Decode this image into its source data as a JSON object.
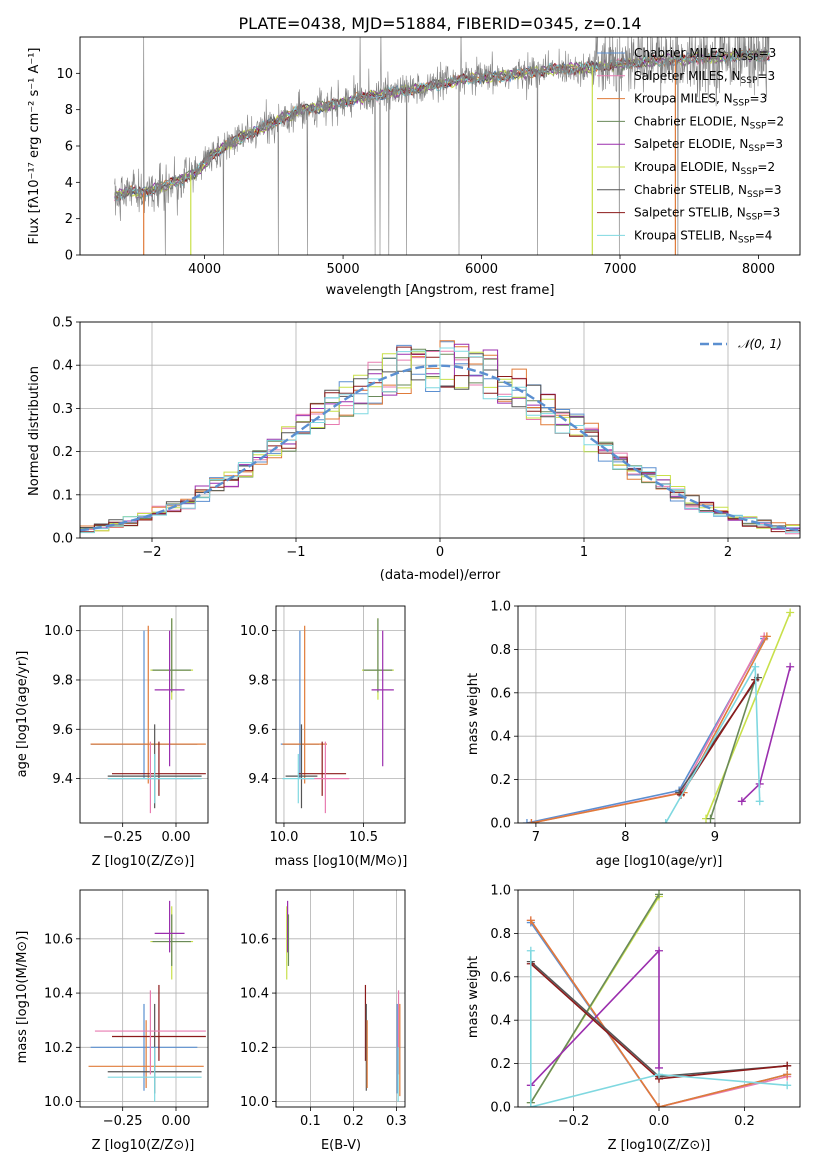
{
  "chart_data": [
    {
      "id": "spectrum",
      "type": "line",
      "title": "PLATE=0438, MJD=51884, FIBERID=0345, z=0.14",
      "xlabel": "wavelength [Angstrom, rest frame]",
      "ylabel": "Flux [fλ10⁻¹⁷ erg cm⁻² s⁻¹ A⁻¹]",
      "xlim": [
        3100,
        8300
      ],
      "ylim": [
        0,
        12
      ],
      "xticks": [
        4000,
        5000,
        6000,
        7000,
        8000
      ],
      "yticks": [
        0,
        2,
        4,
        6,
        8,
        10
      ],
      "grid": false,
      "legend_placement": "upper-right",
      "continuum": {
        "x": [
          3350,
          3450,
          3550,
          3650,
          3750,
          3850,
          3950,
          4050,
          4150,
          4300,
          4500,
          4700,
          4900,
          5100,
          5300,
          5500,
          5700,
          5900,
          6100,
          6300,
          6500,
          6700,
          6900,
          7100,
          7300,
          7500,
          7700,
          7900,
          8050
        ],
        "y": [
          3.2,
          3.5,
          3.4,
          3.7,
          3.9,
          4.2,
          4.6,
          5.5,
          6.0,
          6.6,
          7.3,
          8.0,
          8.2,
          8.6,
          8.9,
          9.1,
          9.4,
          9.7,
          9.8,
          10.0,
          10.2,
          10.3,
          10.4,
          10.6,
          10.7,
          10.8,
          10.9,
          11.0,
          11.0
        ]
      },
      "series": [
        {
          "name": "Chabrier MILES, N$_{SSP}$=3",
          "label_main": "Chabrier MILES, N",
          "label_sub": "SSP",
          "label_tail": "=3",
          "color": "#5b8fd0"
        },
        {
          "name": "Salpeter MILES, N$_{SSP}$=3",
          "label_main": "Salpeter MILES, N",
          "label_sub": "SSP",
          "label_tail": "=3",
          "color": "#e87bb0"
        },
        {
          "name": "Kroupa MILES, N$_{SSP}$=3",
          "label_main": "Kroupa MILES, N",
          "label_sub": "SSP",
          "label_tail": "=3",
          "color": "#e07b39"
        },
        {
          "name": "Chabrier ELODIE, N$_{SSP}$=2",
          "label_main": "Chabrier ELODIE, N",
          "label_sub": "SSP",
          "label_tail": "=2",
          "color": "#6a8a5a"
        },
        {
          "name": "Salpeter ELODIE, N$_{SSP}$=3",
          "label_main": "Salpeter ELODIE, N",
          "label_sub": "SSP",
          "label_tail": "=3",
          "color": "#9b2fae"
        },
        {
          "name": "Kroupa ELODIE, N$_{SSP}$=2",
          "label_main": "Kroupa ELODIE, N",
          "label_sub": "SSP",
          "label_tail": "=2",
          "color": "#c8e04a"
        },
        {
          "name": "Chabrier STELIB, N$_{SSP}$=3",
          "label_main": "Chabrier STELIB, N",
          "label_sub": "SSP",
          "label_tail": "=3",
          "color": "#555555"
        },
        {
          "name": "Salpeter STELIB, N$_{SSP}$=3",
          "label_main": "Salpeter STELIB, N",
          "label_sub": "SSP",
          "label_tail": "=3",
          "color": "#8b1a1a"
        },
        {
          "name": "Kroupa STELIB, N$_{SSP}$=4",
          "label_main": "Kroupa STELIB, N",
          "label_sub": "SSP",
          "label_tail": "=4",
          "color": "#7fd8e0"
        }
      ],
      "observed_color": "#808080"
    },
    {
      "id": "residuals",
      "type": "line",
      "xlabel": "(data-model)/error",
      "ylabel": "Normed distribution",
      "xlim": [
        -2.5,
        2.5
      ],
      "ylim": [
        0,
        0.5
      ],
      "xticks": [
        -2,
        -1,
        0,
        1,
        2
      ],
      "xtick_labels": [
        "−2",
        "−1",
        "0",
        "1",
        "2"
      ],
      "yticks": [
        0.0,
        0.1,
        0.2,
        0.3,
        0.4,
        0.5
      ],
      "ytick_labels": [
        "0.0",
        "0.1",
        "0.2",
        "0.3",
        "0.4",
        "0.5"
      ],
      "grid": true,
      "legend_placement": "upper-right",
      "reference": {
        "name": "𝒩(0, 1)",
        "color": "#5b8fd0",
        "dash": true
      }
    },
    {
      "id": "age-vs-Z",
      "type": "scatter",
      "xlabel": "Z [log10(Z/Z⊙)]",
      "ylabel": "age  [log10(age/yr)]",
      "xlim": [
        -0.45,
        0.15
      ],
      "ylim": [
        9.22,
        10.1
      ],
      "xticks": [
        -0.25,
        0.0
      ],
      "xtick_labels": [
        "−0.25",
        "0.00"
      ],
      "yticks": [
        9.4,
        9.6,
        9.8,
        10.0
      ],
      "grid": true,
      "points": [
        {
          "x": -0.15,
          "y": 9.54,
          "xerr": 0.25,
          "ylo": 9.4,
          "yhi": 10.0,
          "color": "#5b8fd0"
        },
        {
          "x": -0.13,
          "y": 9.54,
          "xerr": 0.27,
          "ylo": 9.38,
          "yhi": 10.02,
          "color": "#e07b39"
        },
        {
          "x": -0.02,
          "y": 9.84,
          "xerr": 0.1,
          "ylo": 9.72,
          "yhi": 10.05,
          "color": "#c8e04a"
        },
        {
          "x": -0.02,
          "y": 9.84,
          "xerr": 0.09,
          "ylo": 9.75,
          "yhi": 10.05,
          "color": "#6a8a5a"
        },
        {
          "x": -0.03,
          "y": 9.76,
          "xerr": 0.07,
          "ylo": 9.45,
          "yhi": 10.0,
          "color": "#9b2fae"
        },
        {
          "x": -0.08,
          "y": 9.42,
          "xerr": 0.22,
          "ylo": 9.33,
          "yhi": 9.55,
          "color": "#8b1a1a"
        },
        {
          "x": -0.1,
          "y": 9.41,
          "xerr": 0.22,
          "ylo": 9.28,
          "yhi": 9.62,
          "color": "#555555"
        },
        {
          "x": -0.12,
          "y": 9.4,
          "xerr": 0.2,
          "ylo": 9.26,
          "yhi": 9.55,
          "color": "#e87bb0"
        },
        {
          "x": -0.1,
          "y": 9.4,
          "xerr": 0.22,
          "ylo": 9.3,
          "yhi": 9.5,
          "color": "#7fd8e0"
        }
      ]
    },
    {
      "id": "age-vs-mass",
      "type": "scatter",
      "xlabel": "mass [log10(M/M⊙)]",
      "ylabel": "",
      "xlim": [
        9.95,
        10.76
      ],
      "ylim": [
        9.22,
        10.1
      ],
      "xticks": [
        10.0,
        10.5
      ],
      "xtick_labels": [
        "10.0",
        "10.5"
      ],
      "yticks": [
        9.4,
        9.6,
        9.8,
        10.0
      ],
      "grid": true,
      "points": [
        {
          "x": 10.1,
          "y": 9.54,
          "xerr": 0.12,
          "ylo": 9.4,
          "yhi": 10.0,
          "color": "#5b8fd0"
        },
        {
          "x": 10.13,
          "y": 9.54,
          "xerr": 0.14,
          "ylo": 9.38,
          "yhi": 10.02,
          "color": "#e07b39"
        },
        {
          "x": 10.59,
          "y": 9.84,
          "xerr": 0.1,
          "ylo": 9.72,
          "yhi": 10.05,
          "color": "#c8e04a"
        },
        {
          "x": 10.59,
          "y": 9.84,
          "xerr": 0.09,
          "ylo": 9.75,
          "yhi": 10.05,
          "color": "#6a8a5a"
        },
        {
          "x": 10.62,
          "y": 9.76,
          "xerr": 0.07,
          "ylo": 9.45,
          "yhi": 10.0,
          "color": "#9b2fae"
        },
        {
          "x": 10.24,
          "y": 9.42,
          "xerr": 0.15,
          "ylo": 9.33,
          "yhi": 9.55,
          "color": "#8b1a1a"
        },
        {
          "x": 10.11,
          "y": 9.41,
          "xerr": 0.1,
          "ylo": 9.28,
          "yhi": 9.62,
          "color": "#555555"
        },
        {
          "x": 10.26,
          "y": 9.4,
          "xerr": 0.15,
          "ylo": 9.26,
          "yhi": 9.55,
          "color": "#e87bb0"
        },
        {
          "x": 10.09,
          "y": 9.4,
          "xerr": 0.1,
          "ylo": 9.3,
          "yhi": 9.5,
          "color": "#7fd8e0"
        }
      ]
    },
    {
      "id": "weight-vs-age",
      "type": "line",
      "xlabel": "age  [log10(age/yr)]",
      "ylabel": "mass weight",
      "xlim": [
        6.8,
        9.95
      ],
      "ylim": [
        0,
        1.0
      ],
      "xticks": [
        7,
        8,
        9
      ],
      "yticks": [
        0.0,
        0.2,
        0.4,
        0.6,
        0.8,
        1.0
      ],
      "grid": true,
      "series": [
        {
          "color": "#5b8fd0",
          "x": [
            6.9,
            8.6,
            9.55
          ],
          "y": [
            0.0,
            0.15,
            0.85
          ]
        },
        {
          "color": "#e87bb0",
          "x": [
            6.95,
            8.62,
            9.55
          ],
          "y": [
            0.0,
            0.14,
            0.86
          ]
        },
        {
          "color": "#e07b39",
          "x": [
            6.95,
            8.65,
            9.58
          ],
          "y": [
            0.0,
            0.14,
            0.86
          ]
        },
        {
          "color": "#c8e04a",
          "x": [
            8.9,
            9.84
          ],
          "y": [
            0.02,
            0.97
          ]
        },
        {
          "color": "#6a8a5a",
          "x": [
            8.95,
            9.45
          ],
          "y": [
            0.02,
            0.66
          ]
        },
        {
          "color": "#9b2fae",
          "x": [
            9.3,
            9.5,
            9.84
          ],
          "y": [
            0.1,
            0.18,
            0.72
          ]
        },
        {
          "color": "#555555",
          "x": [
            8.6,
            9.48
          ],
          "y": [
            0.14,
            0.67
          ]
        },
        {
          "color": "#8b1a1a",
          "x": [
            8.62,
            9.45
          ],
          "y": [
            0.13,
            0.66
          ]
        },
        {
          "color": "#7fd8e0",
          "x": [
            8.45,
            9.45,
            9.5
          ],
          "y": [
            0.0,
            0.72,
            0.1
          ]
        }
      ]
    },
    {
      "id": "mass-vs-Z",
      "type": "scatter",
      "xlabel": "Z [log10(Z/Z⊙)]",
      "ylabel": "mass [log10(M/M⊙)]",
      "xlim": [
        -0.45,
        0.15
      ],
      "ylim": [
        9.98,
        10.78
      ],
      "xticks": [
        -0.25,
        0.0
      ],
      "xtick_labels": [
        "−0.25",
        "0.00"
      ],
      "yticks": [
        10.0,
        10.2,
        10.4,
        10.6
      ],
      "grid": true,
      "points": [
        {
          "x": -0.15,
          "y": 10.2,
          "xerr": 0.25,
          "ylo": 10.04,
          "yhi": 10.36,
          "color": "#5b8fd0"
        },
        {
          "x": -0.14,
          "y": 10.13,
          "xerr": 0.27,
          "ylo": 10.05,
          "yhi": 10.3,
          "color": "#e07b39"
        },
        {
          "x": -0.02,
          "y": 10.59,
          "xerr": 0.1,
          "ylo": 10.45,
          "yhi": 10.72,
          "color": "#c8e04a"
        },
        {
          "x": -0.02,
          "y": 10.59,
          "xerr": 0.09,
          "ylo": 10.5,
          "yhi": 10.69,
          "color": "#6a8a5a"
        },
        {
          "x": -0.03,
          "y": 10.62,
          "xerr": 0.07,
          "ylo": 10.55,
          "yhi": 10.74,
          "color": "#9b2fae"
        },
        {
          "x": -0.08,
          "y": 10.24,
          "xerr": 0.22,
          "ylo": 10.15,
          "yhi": 10.43,
          "color": "#8b1a1a"
        },
        {
          "x": -0.1,
          "y": 10.11,
          "xerr": 0.22,
          "ylo": 10.03,
          "yhi": 10.36,
          "color": "#555555"
        },
        {
          "x": -0.12,
          "y": 10.26,
          "xerr": 0.26,
          "ylo": 10.1,
          "yhi": 10.41,
          "color": "#e87bb0"
        },
        {
          "x": -0.1,
          "y": 10.09,
          "xerr": 0.22,
          "ylo": 10.0,
          "yhi": 10.2,
          "color": "#7fd8e0"
        }
      ]
    },
    {
      "id": "mass-vs-EBV",
      "type": "scatter",
      "xlabel": "E(B-V)",
      "ylabel": "",
      "xlim": [
        0.02,
        0.32
      ],
      "ylim": [
        9.98,
        10.78
      ],
      "xticks": [
        0.1,
        0.2,
        0.3
      ],
      "xtick_labels": [
        "0.1",
        "0.2",
        "0.3"
      ],
      "yticks": [
        10.0,
        10.2,
        10.4,
        10.6
      ],
      "grid": true,
      "points": [
        {
          "x": 0.045,
          "y": 10.6,
          "ylo": 10.45,
          "yhi": 10.72,
          "color": "#c8e04a"
        },
        {
          "x": 0.047,
          "y": 10.62,
          "ylo": 10.55,
          "yhi": 10.74,
          "color": "#9b2fae"
        },
        {
          "x": 0.049,
          "y": 10.59,
          "ylo": 10.5,
          "yhi": 10.69,
          "color": "#6a8a5a"
        },
        {
          "x": 0.228,
          "y": 10.24,
          "ylo": 10.15,
          "yhi": 10.43,
          "color": "#8b1a1a"
        },
        {
          "x": 0.23,
          "y": 10.2,
          "ylo": 10.04,
          "yhi": 10.36,
          "color": "#555555"
        },
        {
          "x": 0.232,
          "y": 10.2,
          "ylo": 10.05,
          "yhi": 10.3,
          "color": "#e07b39"
        },
        {
          "x": 0.302,
          "y": 10.2,
          "ylo": 10.03,
          "yhi": 10.36,
          "color": "#5b8fd0"
        },
        {
          "x": 0.305,
          "y": 10.26,
          "ylo": 10.1,
          "yhi": 10.41,
          "color": "#e87bb0"
        },
        {
          "x": 0.308,
          "y": 10.13,
          "ylo": 10.02,
          "yhi": 10.36,
          "color": "#e07b39"
        },
        {
          "x": 0.304,
          "y": 10.09,
          "ylo": 10.0,
          "yhi": 10.2,
          "color": "#7fd8e0"
        }
      ]
    },
    {
      "id": "weight-vs-Z",
      "type": "line",
      "xlabel": "Z [log10(Z/Z⊙)]",
      "ylabel": "mass weight",
      "xlim": [
        -0.33,
        0.33
      ],
      "ylim": [
        0,
        1.0
      ],
      "xticks": [
        -0.2,
        0.0,
        0.2
      ],
      "xtick_labels": [
        "−0.2",
        "0.0",
        "0.2"
      ],
      "yticks": [
        0.0,
        0.2,
        0.4,
        0.6,
        0.8,
        1.0
      ],
      "grid": true,
      "series": [
        {
          "color": "#5b8fd0",
          "x": [
            -0.3,
            0.0,
            0.3
          ],
          "y": [
            0.85,
            0.0,
            0.15
          ]
        },
        {
          "color": "#e87bb0",
          "x": [
            -0.3,
            0.0,
            0.3
          ],
          "y": [
            0.86,
            0.0,
            0.14
          ]
        },
        {
          "color": "#e07b39",
          "x": [
            -0.3,
            0.0,
            0.3
          ],
          "y": [
            0.86,
            0.0,
            0.15
          ]
        },
        {
          "color": "#c8e04a",
          "x": [
            -0.3,
            0.0
          ],
          "y": [
            0.02,
            0.97
          ]
        },
        {
          "color": "#6a8a5a",
          "x": [
            -0.3,
            0.0
          ],
          "y": [
            0.02,
            0.98
          ]
        },
        {
          "color": "#9b2fae",
          "x": [
            -0.3,
            0.0,
            0.0
          ],
          "y": [
            0.1,
            0.72,
            0.18
          ]
        },
        {
          "color": "#555555",
          "x": [
            -0.3,
            0.0,
            0.3
          ],
          "y": [
            0.67,
            0.14,
            0.19
          ]
        },
        {
          "color": "#8b1a1a",
          "x": [
            -0.3,
            0.0,
            0.3
          ],
          "y": [
            0.66,
            0.13,
            0.19
          ]
        },
        {
          "color": "#7fd8e0",
          "x": [
            -0.3,
            -0.3,
            0.0,
            0.3
          ],
          "y": [
            0.72,
            0.0,
            0.15,
            0.1
          ]
        }
      ]
    }
  ]
}
